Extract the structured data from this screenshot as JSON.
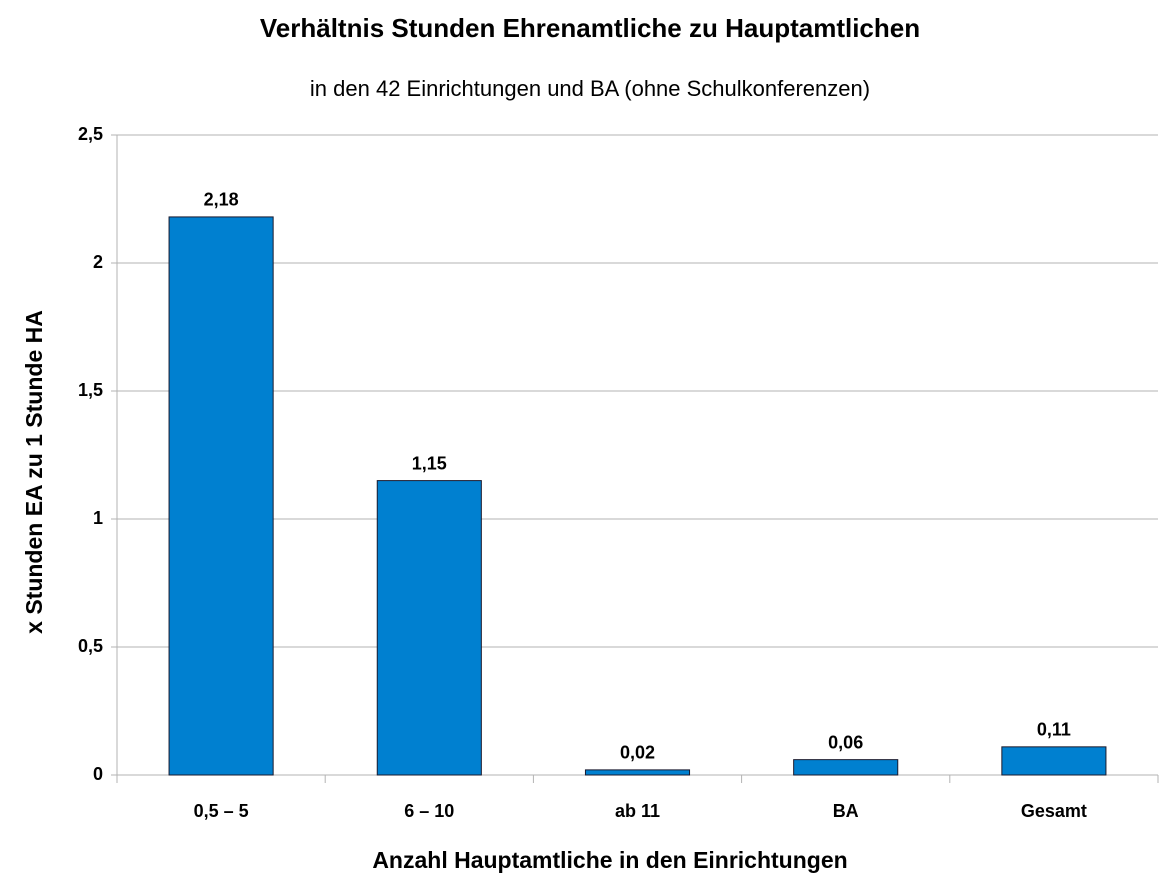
{
  "chart_data": {
    "type": "bar",
    "title": "Verhältnis Stunden Ehrenamtliche zu Hauptamtlichen",
    "subtitle": "in den 42 Einrichtungen und BA (ohne Schulkonferenzen)",
    "x_label": "Anzahl Hauptamtliche in den Einrichtungen",
    "y_label": "x Stunden EA zu 1 Stunde HA",
    "categories": [
      "0,5 – 5",
      "6 – 10",
      "ab 11",
      "BA",
      "Gesamt"
    ],
    "values": [
      2.18,
      1.15,
      0.02,
      0.06,
      0.11
    ],
    "value_labels": [
      "2,18",
      "1,15",
      "0,02",
      "0,06",
      "0,11"
    ],
    "color": "#0080d0",
    "ylim": [
      0,
      2.5
    ],
    "yticks": [
      0,
      {
        "value": 0.5,
        "label": "0,5"
      },
      1,
      {
        "value": 1.5,
        "label": "1,5"
      },
      2,
      {
        "value": 2.5,
        "label": "2,5"
      }
    ],
    "grid": true
  }
}
